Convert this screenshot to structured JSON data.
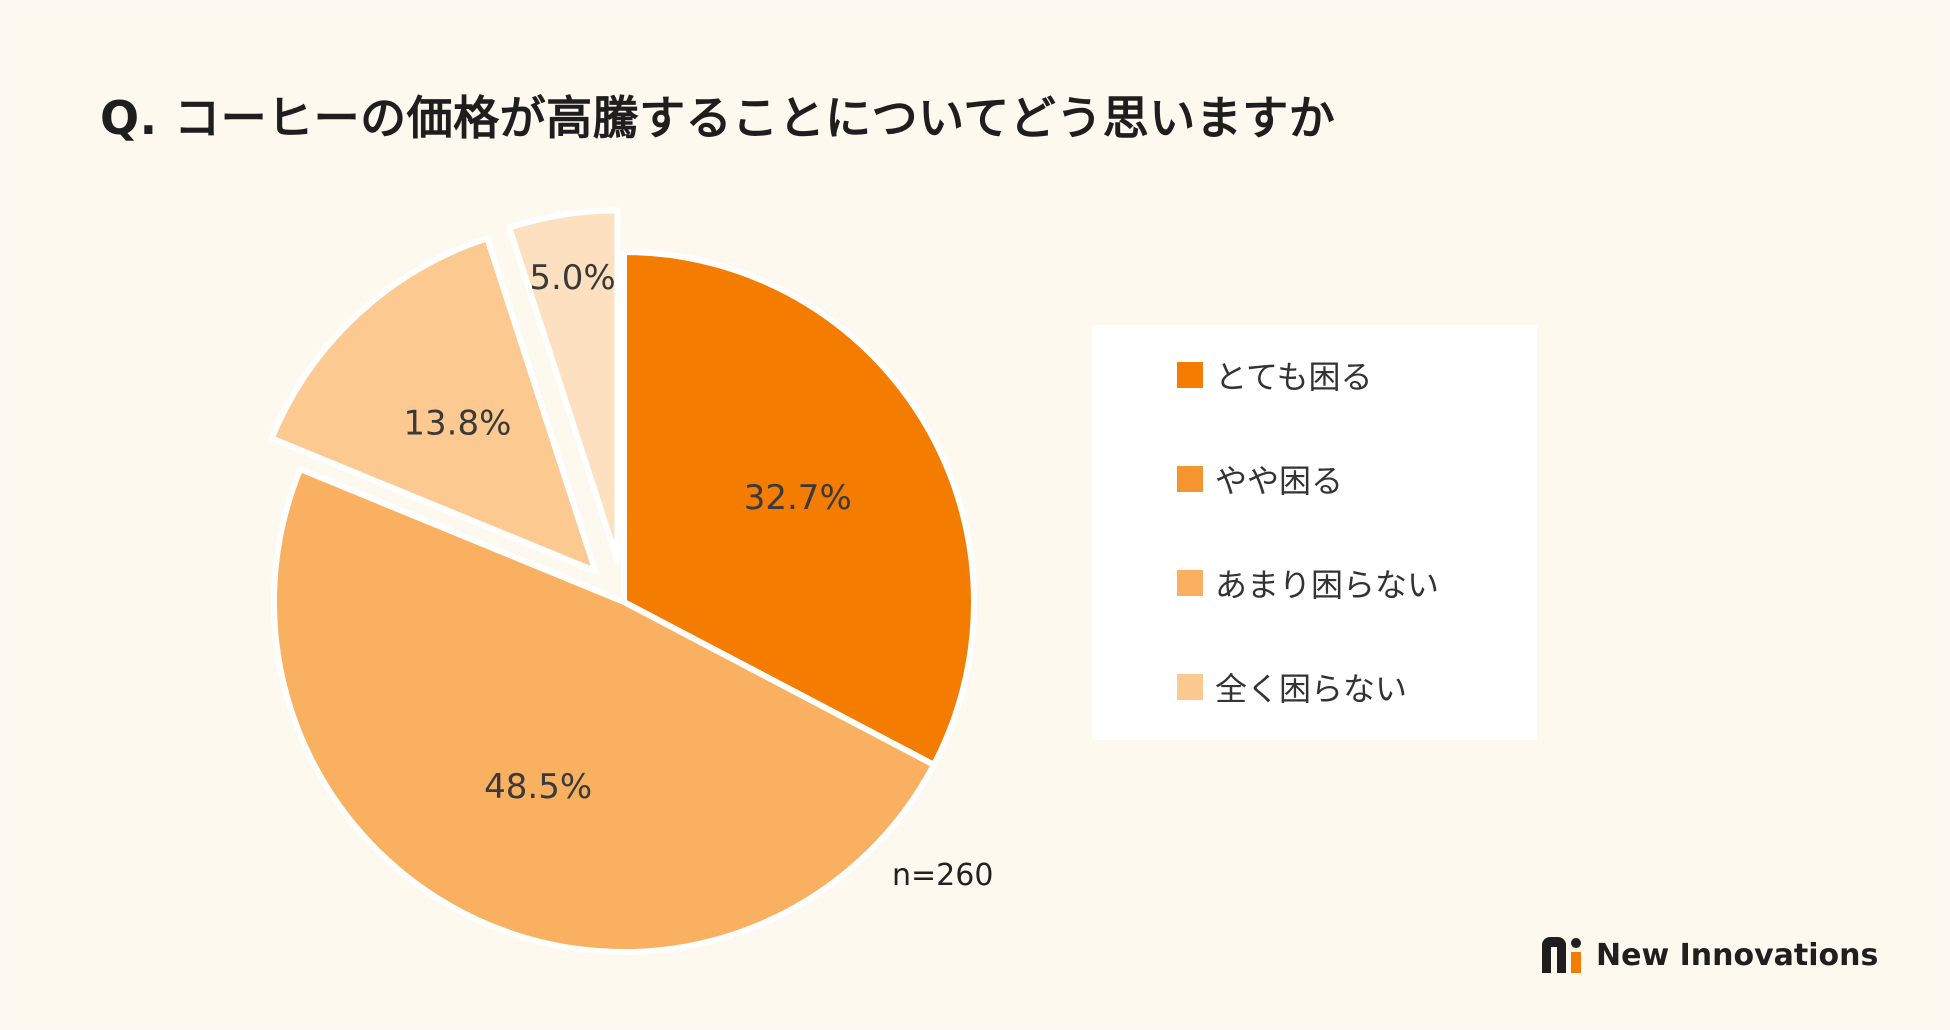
{
  "title": "Q. コーヒーの価格が高騰することについてどう思いますか",
  "sample_size": "n=260",
  "brand": {
    "name": "New Innovations",
    "icon": "new-innovations-logo-icon",
    "accent": "#f47c00"
  },
  "chart_data": {
    "type": "pie",
    "categories": [
      "とても困る",
      "やや困る",
      "あまり困らない",
      "全く困らない"
    ],
    "values": [
      32.7,
      48.5,
      13.8,
      5.0
    ],
    "labels": [
      "32.7%",
      "48.5%",
      "13.8%",
      "5.0%"
    ],
    "colors": [
      "#f47c00",
      "#f9b060",
      "#fcc991",
      "#fde0bf"
    ],
    "legend_colors": [
      "#f47c00",
      "#f5952f",
      "#f9b060",
      "#fcc991"
    ],
    "exploded": [
      false,
      false,
      true,
      true
    ],
    "legend_position": "right"
  }
}
